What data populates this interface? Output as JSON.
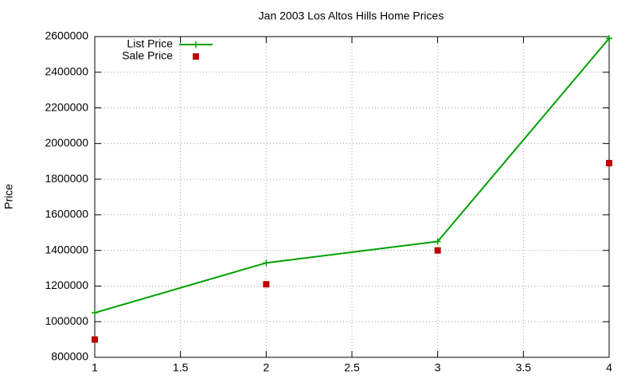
{
  "chart_data": {
    "type": "line",
    "title": "Jan 2003 Los Altos Hills Home Prices",
    "y_label": "Price",
    "x": [
      1,
      2,
      3,
      4
    ],
    "series": [
      {
        "name": "List Price",
        "color": "#00a000",
        "style": "linespoints",
        "values": [
          1050000,
          1330000,
          1450000,
          2590000
        ]
      },
      {
        "name": "Sale Price",
        "color": "#c00000",
        "style": "points",
        "values": [
          900000,
          1210000,
          1400000,
          1890000
        ]
      }
    ],
    "xlim": [
      1,
      4
    ],
    "xticks": [
      1,
      1.5,
      2,
      2.5,
      3,
      3.5,
      4
    ],
    "ylim": [
      800000,
      2600000
    ],
    "yticks": [
      800000,
      1000000,
      1200000,
      1400000,
      1600000,
      1800000,
      2000000,
      2200000,
      2400000,
      2600000
    ],
    "grid": true,
    "legend": "top-left"
  }
}
